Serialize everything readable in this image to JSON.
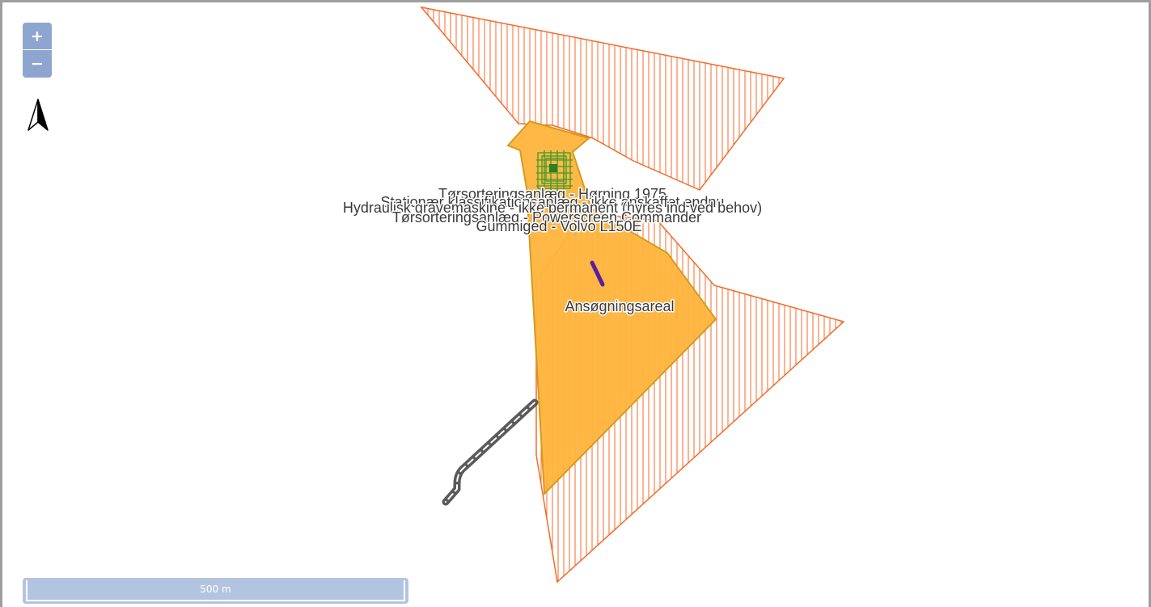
{
  "controls": {
    "zoom_in": "+",
    "zoom_out": "−"
  },
  "scale_bar": {
    "label": "500 m"
  },
  "map_labels": [
    {
      "name": "label-torsortering-horning",
      "text": "Tørsorteringsanlæg - Hørning 1975"
    },
    {
      "name": "label-stationaer",
      "text": "Stationær klassifikationsanlæg - ikke anskaffet endnu"
    },
    {
      "name": "label-gravemaskine",
      "text": "Hydraulisk gravemaskine - ikke permanent (hyres ind ved behov)"
    },
    {
      "name": "label-powerscreen",
      "text": "Tørsorteringsanlæg - Powerscreen Commander"
    },
    {
      "name": "label-gummiged",
      "text": "Gummiged - Volvo L150E"
    },
    {
      "name": "label-ansoegningsareal",
      "text": "Ansøgningsareal"
    }
  ],
  "colors": {
    "hatch_outline": "#f46a28",
    "application_area_fill": "#ffb43c",
    "application_area_stroke": "#d69a1e",
    "equipment_green": "#3c9a2e",
    "marker_purple": "#5a1ea0",
    "road_gray": "#5a5a5a",
    "control_blue": "#8ea6cf"
  }
}
